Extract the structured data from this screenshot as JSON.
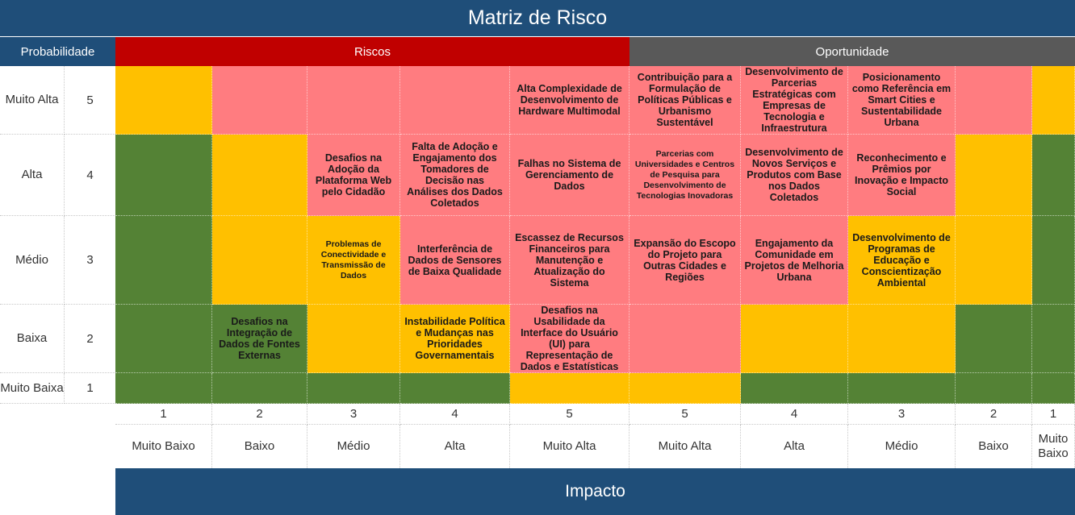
{
  "title": "Matriz de Risco",
  "probability_header": "Probabilidade",
  "risks_header": "Riscos",
  "opportunity_header": "Oportunidade",
  "impact_label": "Impacto",
  "colors": {
    "green": "#548235",
    "yellow": "#ffc000",
    "red": "#ff7c80",
    "risk_header": "#c00000",
    "opportunity_header": "#595959",
    "banner": "#1f4e79"
  },
  "probability_rows": [
    {
      "label": "Muito Alta",
      "value": "5"
    },
    {
      "label": "Alta",
      "value": "4"
    },
    {
      "label": "Médio",
      "value": "3"
    },
    {
      "label": "Baixa",
      "value": "2"
    },
    {
      "label": "Muito Baixa",
      "value": "1"
    }
  ],
  "impact_columns": [
    {
      "value": "1",
      "label": "Muito Baixo"
    },
    {
      "value": "2",
      "label": "Baixo"
    },
    {
      "value": "3",
      "label": "Médio"
    },
    {
      "value": "4",
      "label": "Alta"
    },
    {
      "value": "5",
      "label": "Muito Alta"
    },
    {
      "value": "5",
      "label": "Muito Alta"
    },
    {
      "value": "4",
      "label": "Alta"
    },
    {
      "value": "3",
      "label": "Médio"
    },
    {
      "value": "2",
      "label": "Baixo"
    },
    {
      "value": "1",
      "label": "Muito Baixo"
    }
  ],
  "grid_colors": [
    [
      "y",
      "r",
      "r",
      "r",
      "r",
      "r",
      "r",
      "r",
      "r",
      "y"
    ],
    [
      "g",
      "y",
      "r",
      "r",
      "r",
      "r",
      "r",
      "r",
      "y",
      "g"
    ],
    [
      "g",
      "y",
      "y",
      "r",
      "r",
      "r",
      "r",
      "y",
      "y",
      "g"
    ],
    [
      "g",
      "g",
      "y",
      "y",
      "r",
      "r",
      "y",
      "y",
      "g",
      "g"
    ],
    [
      "g",
      "g",
      "g",
      "g",
      "y",
      "y",
      "g",
      "g",
      "g",
      "g"
    ]
  ],
  "grid_texts": [
    [
      "",
      "",
      "",
      "",
      "Alta Complexidade de Desenvolvimento de Hardware Multimodal",
      "Contribuição para a Formulação de Políticas Públicas e Urbanismo Sustentável",
      "Desenvolvimento de Parcerias Estratégicas com Empresas de Tecnologia e Infraestrutura",
      "Posicionamento como Referência em Smart Cities e Sustentabilidade Urbana",
      "",
      ""
    ],
    [
      "",
      "",
      "Desafios na Adoção da Plataforma Web pelo Cidadão",
      "Falta de Adoção e Engajamento dos Tomadores de Decisão nas Análises dos Dados Coletados",
      "Falhas no Sistema de Gerenciamento de Dados",
      "Parcerias com Universidades e Centros de Pesquisa para Desenvolvimento de Tecnologias Inovadoras",
      "Desenvolvimento de Novos Serviços e Produtos com Base nos Dados Coletados",
      "Reconhecimento e Prêmios por Inovação e Impacto Social",
      "",
      ""
    ],
    [
      "",
      "",
      "Problemas de Conectividade e Transmissão de Dados",
      "Interferência de Dados de Sensores de Baixa Qualidade",
      "Escassez de Recursos Financeiros para Manutenção e Atualização do Sistema",
      "Expansão do Escopo do Projeto para Outras Cidades e Regiões",
      "Engajamento da Comunidade em Projetos de Melhoria Urbana",
      "Desenvolvimento de Programas de Educação e Conscientização Ambiental",
      "",
      ""
    ],
    [
      "",
      "Desafios na Integração de Dados de Fontes Externas",
      "",
      "Instabilidade Política e Mudanças nas Prioridades Governamentais",
      "Desafios na Usabilidade da Interface do Usuário (UI) para Representação de Dados e Estatísticas",
      "",
      "",
      "",
      "",
      ""
    ],
    [
      "",
      "",
      "",
      "",
      "",
      "",
      "",
      "",
      "",
      ""
    ]
  ]
}
